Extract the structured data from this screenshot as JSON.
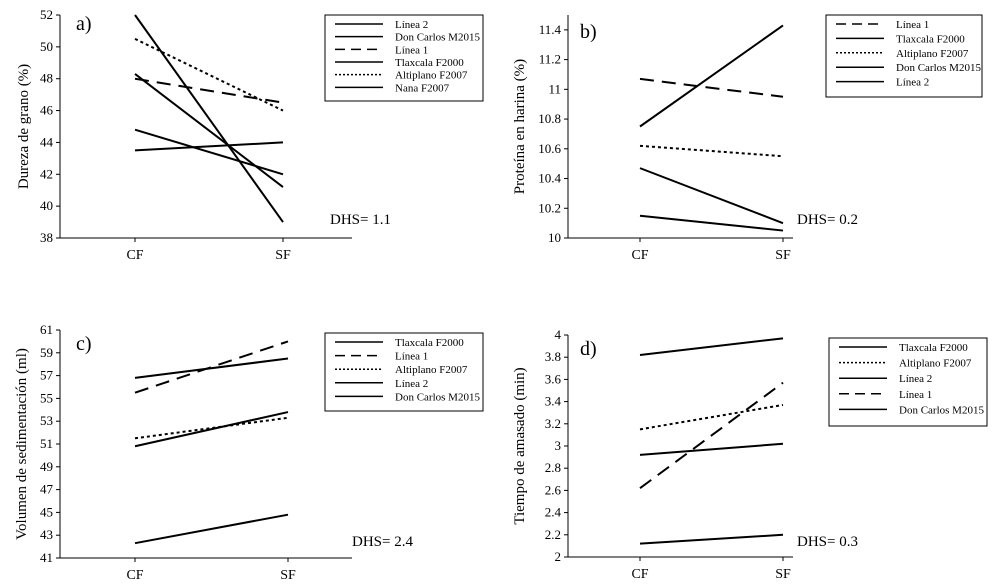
{
  "chart_data": [
    {
      "type": "line",
      "panel_label": "a)",
      "ylabel": "Dureza de grano (%)",
      "categories": [
        "CF",
        "SF"
      ],
      "ylim": [
        38,
        52
      ],
      "yticks": [
        "38",
        "40",
        "42",
        "44",
        "46",
        "48",
        "50",
        "52"
      ],
      "annotation": "DHS= 1.1",
      "series": [
        {
          "name": "Línea 2",
          "style": "solid",
          "values": [
            52.0,
            39.0
          ]
        },
        {
          "name": "Don Carlos M2015",
          "style": "solid",
          "values": [
            48.3,
            41.2
          ]
        },
        {
          "name": "Línea 1",
          "style": "dashed",
          "values": [
            48.0,
            46.5
          ]
        },
        {
          "name": "Tlaxcala F2000",
          "style": "solid",
          "values": [
            44.8,
            42.0
          ]
        },
        {
          "name": "Altiplano F2007",
          "style": "dotted",
          "values": [
            50.5,
            46.0
          ]
        },
        {
          "name": "Nana F2007",
          "style": "solid",
          "values": [
            43.5,
            44.0
          ]
        }
      ]
    },
    {
      "type": "line",
      "panel_label": "b)",
      "ylabel": "Proteína en harina (%)",
      "categories": [
        "CF",
        "SF"
      ],
      "ylim": [
        10,
        11.5
      ],
      "yticks": [
        "10",
        "10.2",
        "10.4",
        "10.6",
        "10.8",
        "11",
        "11.2",
        "11.4"
      ],
      "annotation": "DHS= 0.2",
      "series": [
        {
          "name": "Línea 1",
          "style": "dashed",
          "values": [
            11.07,
            10.95
          ]
        },
        {
          "name": "Tlaxcala F2000",
          "style": "solid",
          "values": [
            10.15,
            10.05
          ]
        },
        {
          "name": "Altiplano F2007",
          "style": "dotted",
          "values": [
            10.62,
            10.55
          ]
        },
        {
          "name": "Don Carlos M2015",
          "style": "solid",
          "values": [
            10.47,
            10.1
          ]
        },
        {
          "name": "Línea 2",
          "style": "solid",
          "values": [
            10.75,
            11.43
          ]
        }
      ]
    },
    {
      "type": "line",
      "panel_label": "c)",
      "ylabel": "Volumen de sedimentación (ml)",
      "categories": [
        "CF",
        "SF"
      ],
      "ylim": [
        41,
        61
      ],
      "yticks": [
        "41",
        "43",
        "45",
        "47",
        "49",
        "51",
        "53",
        "55",
        "57",
        "59",
        "61"
      ],
      "annotation": "DHS= 2.4",
      "series": [
        {
          "name": "Tlaxcala F2000",
          "style": "solid",
          "values": [
            42.3,
            44.8
          ]
        },
        {
          "name": "Línea 1",
          "style": "dashed",
          "values": [
            55.5,
            60.0
          ]
        },
        {
          "name": "Altiplano F2007",
          "style": "dotted",
          "values": [
            51.5,
            53.3
          ]
        },
        {
          "name": "Línea 2",
          "style": "solid",
          "values": [
            56.8,
            58.5
          ]
        },
        {
          "name": "Don Carlos M2015",
          "style": "solid",
          "values": [
            50.8,
            53.8
          ]
        }
      ]
    },
    {
      "type": "line",
      "panel_label": "d)",
      "ylabel": "Tiempo de amasado (min)",
      "categories": [
        "CF",
        "SF"
      ],
      "ylim": [
        2,
        4
      ],
      "yticks": [
        "2",
        "2.2",
        "2.4",
        "2.6",
        "2.8",
        "3",
        "3.2",
        "3.4",
        "3.6",
        "3.8",
        "4"
      ],
      "annotation": "DHS= 0.3",
      "series": [
        {
          "name": "Tlaxcala F2000",
          "style": "solid",
          "values": [
            2.12,
            2.2
          ]
        },
        {
          "name": "Altiplano F2007",
          "style": "dotted",
          "values": [
            3.15,
            3.37
          ]
        },
        {
          "name": "Línea 2",
          "style": "solid",
          "values": [
            3.82,
            3.97
          ]
        },
        {
          "name": "Línea 1",
          "style": "dashed",
          "values": [
            2.62,
            3.57
          ]
        },
        {
          "name": "Don Carlos M2015",
          "style": "solid",
          "values": [
            2.92,
            3.02
          ]
        }
      ]
    }
  ]
}
